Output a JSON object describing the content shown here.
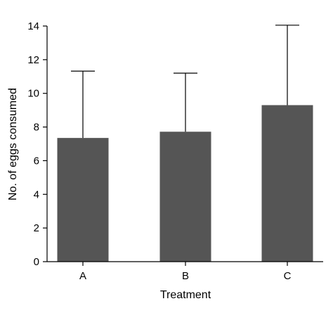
{
  "chart_data": {
    "type": "bar",
    "title": "",
    "xlabel": "Treatment",
    "ylabel": "No. of eggs consumed",
    "categories": [
      "A",
      "B",
      "C"
    ],
    "values": [
      7.35,
      7.72,
      9.3
    ],
    "error_upper": [
      11.32,
      11.2,
      14.05
    ],
    "ylim": [
      0,
      14
    ],
    "yticks": [
      0,
      2,
      4,
      6,
      8,
      10,
      12,
      14
    ],
    "ytick_labels": [
      "0",
      "2",
      "4",
      "6",
      "8",
      "10",
      "12",
      "14"
    ],
    "grid": false,
    "legend": "none",
    "colors": {
      "bar": "#555555",
      "axis": "#000000",
      "background": "#ffffff"
    }
  }
}
